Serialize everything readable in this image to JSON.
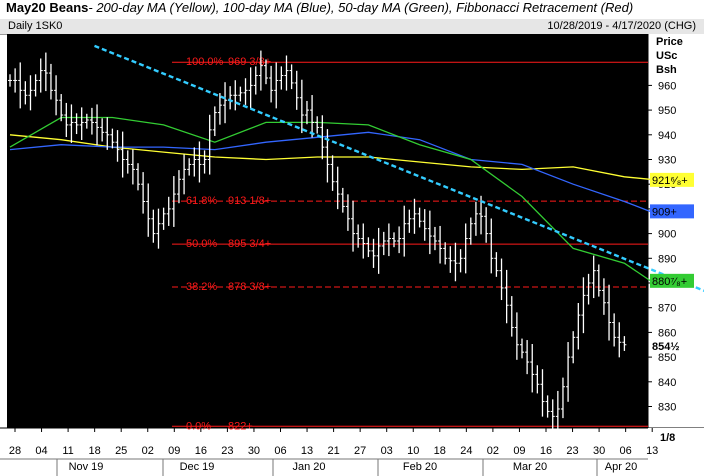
{
  "header": {
    "symbol": "May20 Beans",
    "description": "- 200-day MA (Yellow), 100-day MA (Blue), 50-day MA (Green), Fibbonacci Retracement (Red)",
    "interval": "Daily 1SK0",
    "date_range": "10/28/2019 - 4/17/2020 (CHG)"
  },
  "axis_units": [
    "Price",
    "USc",
    "Bsh"
  ],
  "corner_label": "1/8",
  "colors": {
    "background": "#000000",
    "price_bars": "#ffffff",
    "ma200": "#ffff33",
    "ma100": "#3366ff",
    "ma50": "#33cc33",
    "fib": "#ff1a1a",
    "trendline": "#33ccff"
  },
  "chart_data": {
    "type": "line",
    "grid": false,
    "y_range": [
      822,
      976
    ],
    "y_ticks": [
      830,
      840,
      850,
      860,
      870,
      880,
      890,
      900,
      910,
      920,
      930,
      940,
      950,
      960
    ],
    "x_labels": [
      "28",
      "04",
      "11",
      "18",
      "25",
      "02",
      "09",
      "16",
      "23",
      "30",
      "06",
      "13",
      "21",
      "27",
      "03",
      "10",
      "18",
      "24",
      "02",
      "09",
      "16",
      "23",
      "30",
      "06",
      "13"
    ],
    "months": [
      "Nov 19",
      "Dec 19",
      "Jan 20",
      "Feb 20",
      "Mar 20",
      "Apr 20"
    ],
    "fibonacci": [
      {
        "label": "100.0%",
        "price": 969.375,
        "price_label": "969 3/8+",
        "style": "solid"
      },
      {
        "label": "61.8%",
        "price": 913.125,
        "price_label": "913 1/8+",
        "style": "dashed"
      },
      {
        "label": "50.0%",
        "price": 895.75,
        "price_label": "895 3/4+",
        "style": "solid"
      },
      {
        "label": "38.2%",
        "price": 878.375,
        "price_label": "878 3/8+",
        "style": "dashed"
      },
      {
        "label": "0.0%",
        "price": 822,
        "price_label": "822+",
        "style": "solid"
      }
    ],
    "price_tags": [
      {
        "name": "ma200",
        "value": 921.75,
        "text": "921⁶⁄₈+",
        "bg": "#ffff33",
        "fg": "#000000"
      },
      {
        "name": "ma100",
        "value": 909,
        "text": "909+",
        "bg": "#3366ff",
        "fg": "#ffffff"
      },
      {
        "name": "ma50",
        "value": 880.875,
        "text": "880⁷⁄₈+",
        "bg": "#33cc33",
        "fg": "#000000"
      },
      {
        "name": "last",
        "value": 854.5,
        "text": "854½",
        "bg": "#ffffff",
        "fg": "#000000"
      }
    ],
    "trendline": {
      "start": {
        "x": 16.5,
        "y": 976
      },
      "end": {
        "x": 145,
        "y": 869
      }
    },
    "series": [
      {
        "name": "200-day MA",
        "color": "#ffff33",
        "x": [
          0,
          10,
          20,
          30,
          40,
          50,
          60,
          70,
          80,
          90,
          100,
          110,
          120,
          125
        ],
        "values": [
          940,
          938,
          935,
          933,
          931,
          930,
          931,
          931,
          929,
          927,
          926,
          927,
          923,
          922
        ]
      },
      {
        "name": "100-day MA",
        "color": "#3366ff",
        "x": [
          0,
          10,
          20,
          30,
          40,
          50,
          60,
          70,
          80,
          90,
          100,
          110,
          120,
          125
        ],
        "values": [
          934,
          936,
          935,
          935,
          934,
          937,
          939,
          941,
          938,
          930,
          928,
          920,
          913,
          909
        ]
      },
      {
        "name": "50-day MA",
        "color": "#33cc33",
        "x": [
          0,
          10,
          20,
          30,
          40,
          50,
          60,
          70,
          80,
          90,
          100,
          110,
          120,
          125
        ],
        "values": [
          935,
          947,
          947,
          944,
          937,
          945,
          945,
          944,
          936,
          930,
          915,
          894,
          888,
          881
        ]
      },
      {
        "name": "Daily bars",
        "type": "bar",
        "x": [
          0,
          1,
          2,
          3,
          4,
          5,
          6,
          7,
          8,
          9,
          10,
          11,
          12,
          13,
          14,
          15,
          16,
          17,
          18,
          19,
          20,
          21,
          22,
          23,
          24,
          25,
          26,
          27,
          28,
          29,
          30,
          31,
          32,
          33,
          34,
          35,
          36,
          37,
          38,
          39,
          40,
          41,
          42,
          43,
          44,
          45,
          46,
          47,
          48,
          49,
          50,
          51,
          52,
          53,
          54,
          55,
          56,
          57,
          58,
          59,
          60,
          61,
          62,
          63,
          64,
          65,
          66,
          67,
          68,
          69,
          70,
          71,
          72,
          73,
          74,
          75,
          76,
          77,
          78,
          79,
          80,
          81,
          82,
          83,
          84,
          85,
          86,
          87,
          88,
          89,
          90,
          91,
          92,
          93,
          94,
          95,
          96,
          97,
          98,
          99,
          100,
          101,
          102,
          103,
          104,
          105,
          106,
          107,
          108,
          109,
          110,
          111,
          112,
          113,
          114,
          115,
          116,
          117,
          118,
          119,
          120
        ],
        "values": [
          962,
          962,
          958,
          956,
          958,
          962,
          966,
          965,
          958,
          954,
          948,
          944,
          945,
          944,
          945,
          946,
          945,
          943,
          941,
          940,
          937,
          934,
          930,
          928,
          926,
          920,
          913,
          906,
          900,
          904,
          908,
          910,
          916,
          922,
          926,
          928,
          930,
          928,
          930,
          942,
          949,
          952,
          954,
          956,
          956,
          957,
          958,
          960,
          964,
          968,
          963,
          958,
          962,
          964,
          966,
          961,
          955,
          948,
          950,
          945,
          943,
          935,
          928,
          921,
          916,
          911,
          906,
          900,
          898,
          896,
          893,
          891,
          895,
          897,
          898,
          897,
          898,
          904,
          906,
          908,
          905,
          902,
          899,
          897,
          894,
          890,
          889,
          888,
          890,
          898,
          904,
          908,
          907,
          900,
          890,
          885,
          878,
          871,
          862,
          855,
          852,
          848,
          843,
          839,
          832,
          828,
          826,
          829,
          838,
          850,
          858,
          867,
          875,
          880,
          885,
          877,
          872,
          864,
          858,
          856,
          855
        ]
      }
    ]
  }
}
